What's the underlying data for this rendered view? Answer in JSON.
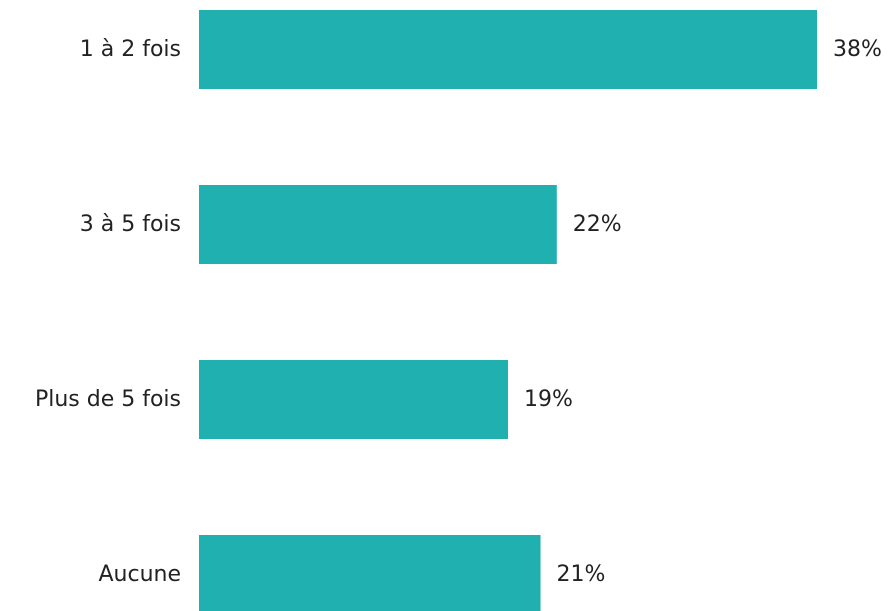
{
  "chart_data": {
    "type": "bar",
    "orientation": "horizontal",
    "categories": [
      "1 à 2 fois",
      "3 à 5 fois",
      "Plus de 5 fois",
      "Aucune"
    ],
    "values": [
      38,
      22,
      19,
      21
    ],
    "value_labels": [
      "38%",
      "22%",
      "19%",
      "21%"
    ],
    "unit": "%",
    "xlim": [
      0,
      38
    ],
    "grid": false,
    "legend": "none",
    "bar_color": "#20B0AF"
  }
}
